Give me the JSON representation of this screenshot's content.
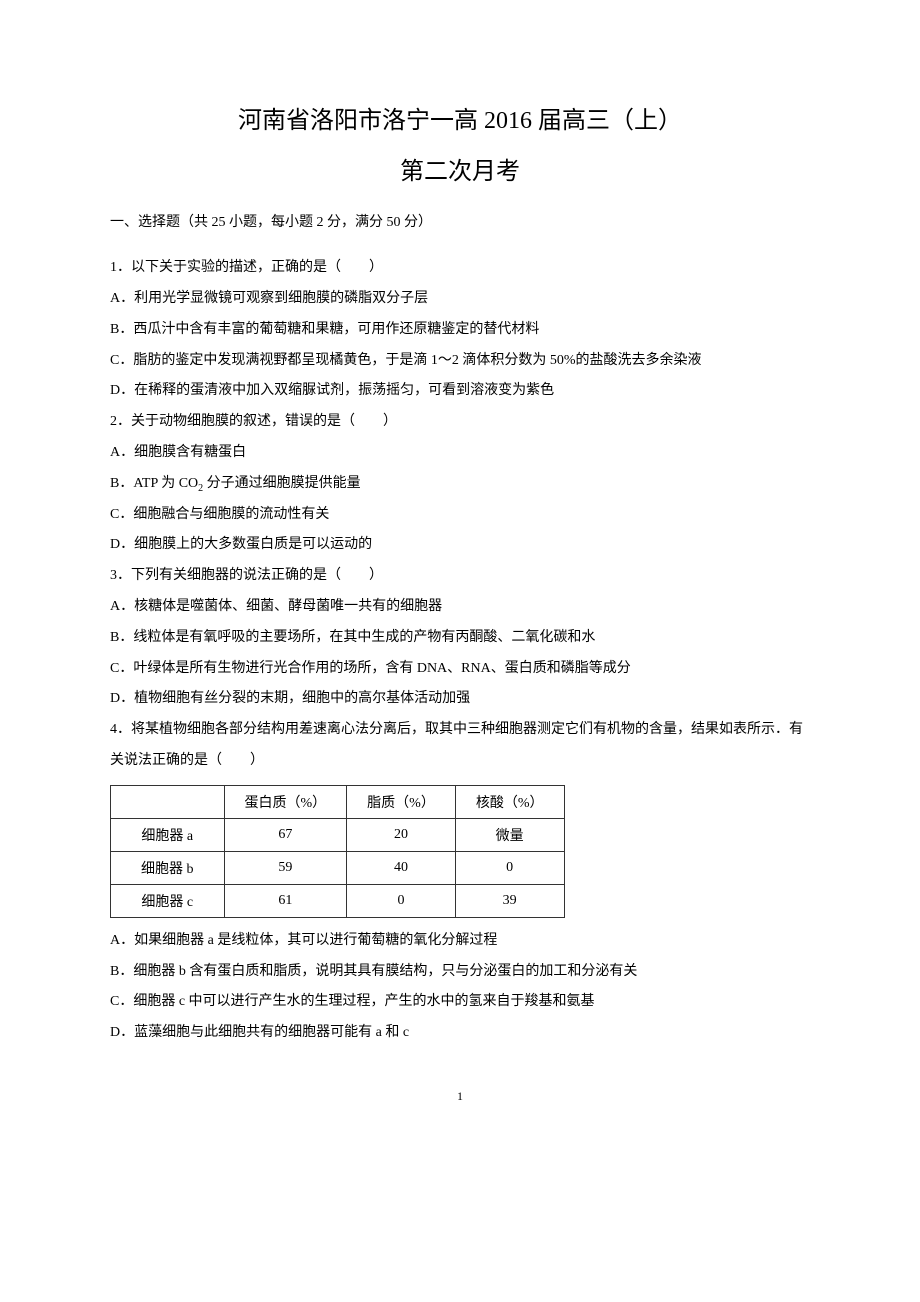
{
  "title": "河南省洛阳市洛宁一高 2016 届高三（上）",
  "subtitle": "第二次月考",
  "section_header": "一、选择题（共 25 小题，每小题 2 分，满分 50 分）",
  "q1": {
    "stem": "1．以下关于实验的描述，正确的是（　　）",
    "optA": "A．利用光学显微镜可观察到细胞膜的磷脂双分子层",
    "optB": "B．西瓜汁中含有丰富的葡萄糖和果糖，可用作还原糖鉴定的替代材料",
    "optC": "C．脂肪的鉴定中发现满视野都呈现橘黄色，于是滴 1～2 滴体积分数为 50%的盐酸洗去多余染液",
    "optD": "D．在稀释的蛋清液中加入双缩脲试剂，振荡摇匀，可看到溶液变为紫色"
  },
  "q2": {
    "stem": "2．关于动物细胞膜的叙述，错误的是（　　）",
    "optA": "A．细胞膜含有糖蛋白",
    "optB_prefix": "B．ATP 为 CO",
    "optB_sub": "2",
    "optB_suffix": " 分子通过细胞膜提供能量",
    "optC": "C．细胞融合与细胞膜的流动性有关",
    "optD": "D．细胞膜上的大多数蛋白质是可以运动的"
  },
  "q3": {
    "stem": "3．下列有关细胞器的说法正确的是（　　）",
    "optA": "A．核糖体是噬菌体、细菌、酵母菌唯一共有的细胞器",
    "optB": "B．线粒体是有氧呼吸的主要场所，在其中生成的产物有丙酮酸、二氧化碳和水",
    "optC": "C．叶绿体是所有生物进行光合作用的场所，含有 DNA、RNA、蛋白质和磷脂等成分",
    "optD": "D．植物细胞有丝分裂的末期，细胞中的高尔基体活动加强"
  },
  "q4": {
    "stem": "4．将某植物细胞各部分结构用差速离心法分离后，取其中三种细胞器测定它们有机物的含量，结果如表所示．有关说法正确的是（　　）",
    "table": {
      "columns": [
        "",
        "蛋白质（%）",
        "脂质（%）",
        "核酸（%）"
      ],
      "rows": [
        [
          "细胞器 a",
          "67",
          "20",
          "微量"
        ],
        [
          "细胞器 b",
          "59",
          "40",
          "0"
        ],
        [
          "细胞器 c",
          "61",
          "0",
          "39"
        ]
      ]
    },
    "optA": "A．如果细胞器 a 是线粒体，其可以进行葡萄糖的氧化分解过程",
    "optB": "B．细胞器 b 含有蛋白质和脂质，说明其具有膜结构，只与分泌蛋白的加工和分泌有关",
    "optC": "C．细胞器 c 中可以进行产生水的生理过程，产生的水中的氢来自于羧基和氨基",
    "optD": "D．蓝藻细胞与此细胞共有的细胞器可能有 a 和 c"
  },
  "page_number": "1"
}
